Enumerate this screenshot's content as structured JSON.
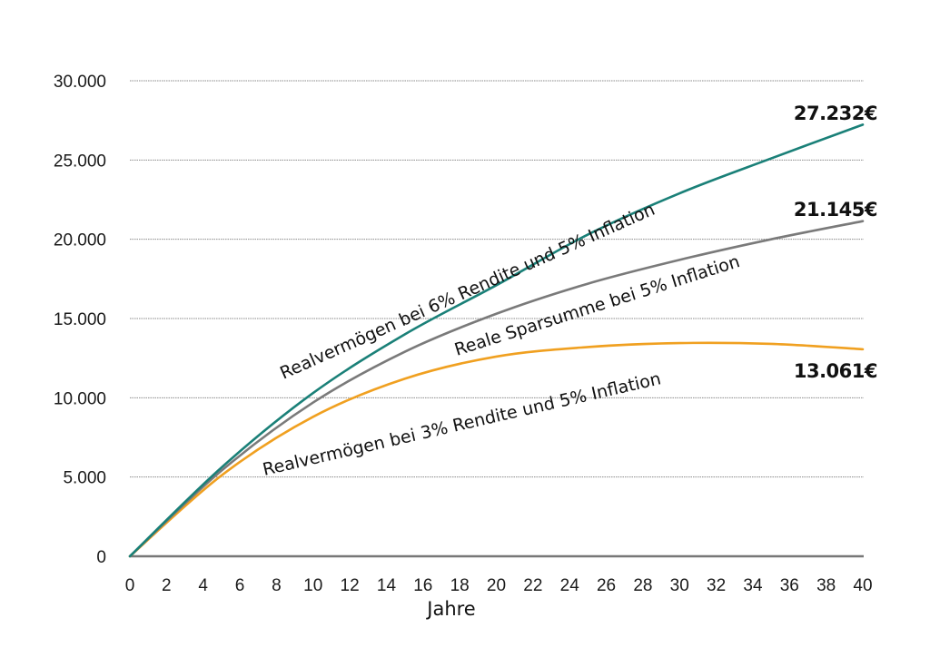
{
  "chart_data": {
    "type": "line",
    "title": "",
    "xlabel": "Jahre",
    "ylabel": "",
    "xlim": [
      0,
      40
    ],
    "ylim": [
      0,
      30000
    ],
    "grid": true,
    "legend_position": "inline-labels",
    "x_ticks": [
      "0",
      "2",
      "4",
      "6",
      "8",
      "10",
      "12",
      "14",
      "16",
      "18",
      "20",
      "22",
      "24",
      "26",
      "28",
      "30",
      "32",
      "34",
      "36",
      "38",
      "40"
    ],
    "y_ticks": [
      "0",
      "5.000",
      "10.000",
      "15.000",
      "20.000",
      "25.000",
      "30.000"
    ],
    "x": [
      0,
      5,
      10,
      15,
      20,
      25,
      30,
      35,
      40
    ],
    "series": [
      {
        "name": "Realvermögen bei 6% Rendite und 5% Inflation",
        "color": "#1a8078",
        "values": [
          0,
          5600,
          10300,
          14000,
          17100,
          20300,
          22900,
          25100,
          27232
        ],
        "end_label": "27.232€"
      },
      {
        "name": "Reale Sparsumme bei 5% Inflation",
        "color": "#7a7a7a",
        "values": [
          0,
          5400,
          9700,
          12900,
          15300,
          17200,
          18700,
          20000,
          21145
        ],
        "end_label": "21.145€"
      },
      {
        "name": "Realvermögen bei 3% Rendite und 5% Inflation",
        "color": "#f0a020",
        "values": [
          0,
          5100,
          8800,
          11200,
          12600,
          13200,
          13450,
          13400,
          13061
        ],
        "end_label": "13.061€"
      }
    ]
  },
  "labels": {
    "xlabel": "Jahre",
    "series_teal": "Realvermögen bei 6% Rendite und 5% Inflation",
    "series_gray": "Reale Sparsumme bei 5% Inflation",
    "series_orange": "Realvermögen bei 3% Rendite und 5% Inflation",
    "end_teal": "27.232€",
    "end_gray": "21.145€",
    "end_orange": "13.061€"
  }
}
